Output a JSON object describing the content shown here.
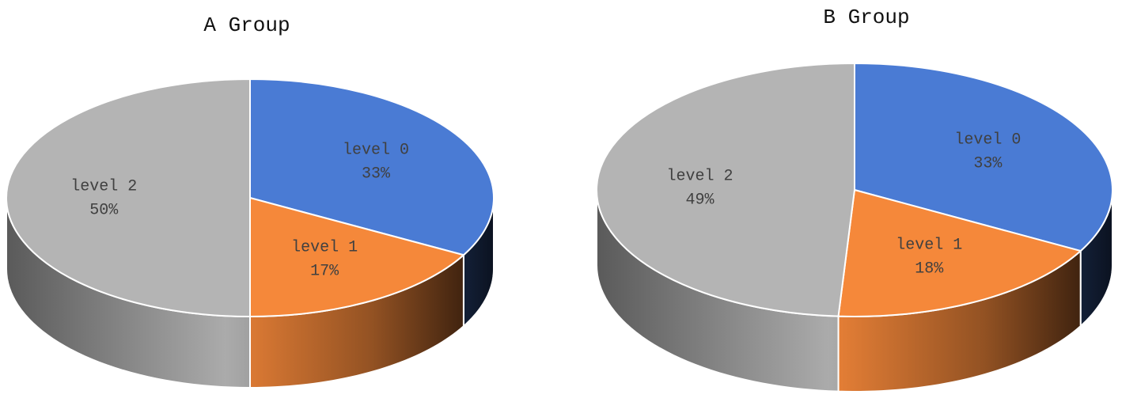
{
  "chart_data": [
    {
      "type": "pie",
      "title": "A Group",
      "categories": [
        "level 0",
        "level 1",
        "level 2"
      ],
      "values": [
        33,
        17,
        50
      ],
      "value_labels": [
        "33%",
        "17%",
        "50%"
      ],
      "colors": [
        "#4a7bd4",
        "#f5883a",
        "#b4b4b4"
      ]
    },
    {
      "type": "pie",
      "title": "B Group",
      "categories": [
        "level 0",
        "level 1",
        "level 2"
      ],
      "values": [
        33,
        18,
        49
      ],
      "value_labels": [
        "33%",
        "18%",
        "49%"
      ],
      "colors": [
        "#4a7bd4",
        "#f5883a",
        "#b4b4b4"
      ]
    }
  ]
}
